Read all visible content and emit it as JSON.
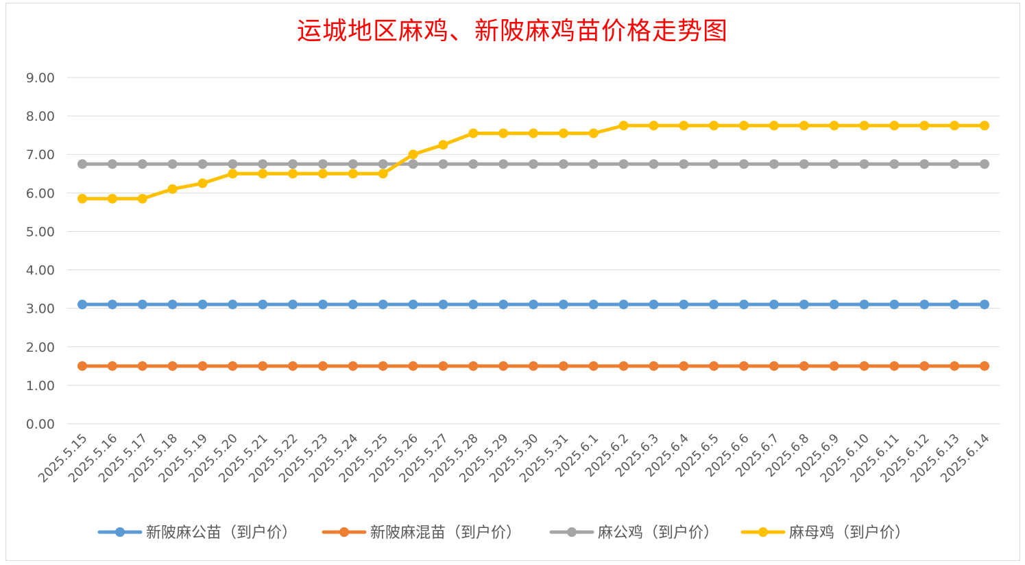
{
  "chart_data": {
    "type": "line",
    "title": "运城地区麻鸡、新陂麻鸡苗价格走势图",
    "xlabel": "",
    "ylabel": "",
    "ylim": [
      0,
      9
    ],
    "ytick_step": 1,
    "grid": "horizontal",
    "legend_position": "bottom",
    "categories": [
      "2025.5.15",
      "2025.5.16",
      "2025.5.17",
      "2025.5.18",
      "2025.5.19",
      "2025.5.20",
      "2025.5.21",
      "2025.5.22",
      "2025.5.23",
      "2025.5.24",
      "2025.5.25",
      "2025.5.26",
      "2025.5.27",
      "2025.5.28",
      "2025.5.29",
      "2025.5.30",
      "2025.5.31",
      "2025.6.1",
      "2025.6.2",
      "2025.6.3",
      "2025.6.4",
      "2025.6.5",
      "2025.6.6",
      "2025.6.7",
      "2025.6.8",
      "2025.6.9",
      "2025.6.10",
      "2025.6.11",
      "2025.6.12",
      "2025.6.13",
      "2025.6.14"
    ],
    "series": [
      {
        "name": "新陂麻公苗（到户价）",
        "color": "#5b9bd5",
        "values": [
          3.1,
          3.1,
          3.1,
          3.1,
          3.1,
          3.1,
          3.1,
          3.1,
          3.1,
          3.1,
          3.1,
          3.1,
          3.1,
          3.1,
          3.1,
          3.1,
          3.1,
          3.1,
          3.1,
          3.1,
          3.1,
          3.1,
          3.1,
          3.1,
          3.1,
          3.1,
          3.1,
          3.1,
          3.1,
          3.1,
          3.1
        ]
      },
      {
        "name": "新陂麻混苗（到户价）",
        "color": "#ed7d31",
        "values": [
          1.5,
          1.5,
          1.5,
          1.5,
          1.5,
          1.5,
          1.5,
          1.5,
          1.5,
          1.5,
          1.5,
          1.5,
          1.5,
          1.5,
          1.5,
          1.5,
          1.5,
          1.5,
          1.5,
          1.5,
          1.5,
          1.5,
          1.5,
          1.5,
          1.5,
          1.5,
          1.5,
          1.5,
          1.5,
          1.5,
          1.5
        ]
      },
      {
        "name": "麻公鸡（到户价）",
        "color": "#a5a5a5",
        "values": [
          6.75,
          6.75,
          6.75,
          6.75,
          6.75,
          6.75,
          6.75,
          6.75,
          6.75,
          6.75,
          6.75,
          6.75,
          6.75,
          6.75,
          6.75,
          6.75,
          6.75,
          6.75,
          6.75,
          6.75,
          6.75,
          6.75,
          6.75,
          6.75,
          6.75,
          6.75,
          6.75,
          6.75,
          6.75,
          6.75,
          6.75
        ]
      },
      {
        "name": "麻母鸡（到户价）",
        "color": "#ffc000",
        "values": [
          5.85,
          5.85,
          5.85,
          6.1,
          6.25,
          6.5,
          6.5,
          6.5,
          6.5,
          6.5,
          6.5,
          7.0,
          7.25,
          7.55,
          7.55,
          7.55,
          7.55,
          7.55,
          7.75,
          7.75,
          7.75,
          7.75,
          7.75,
          7.75,
          7.75,
          7.75,
          7.75,
          7.75,
          7.75,
          7.75,
          7.75
        ]
      }
    ]
  }
}
